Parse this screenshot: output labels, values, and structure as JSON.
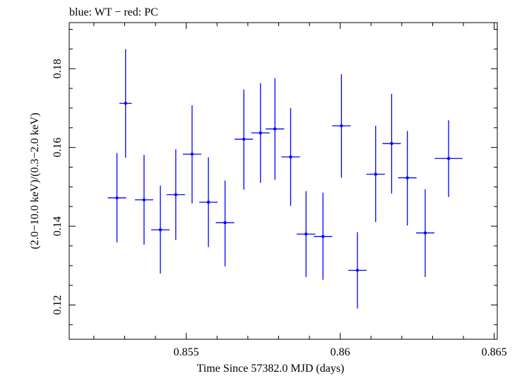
{
  "chart_data": {
    "type": "scatter",
    "title": "blue: WT − red: PC",
    "xlabel": "Time Since 57382.0 MJD (days)",
    "ylabel": "(2.0−10.0 keV)/(0.3−2.0 keV)",
    "xlim": [
      0.8512,
      0.8651
    ],
    "ylim": [
      0.1113,
      0.1917
    ],
    "xticks": [
      0.855,
      0.86,
      0.865
    ],
    "xtick_labels": [
      "0.855",
      "0.86",
      "0.865"
    ],
    "yticks": [
      0.12,
      0.14,
      0.16,
      0.18
    ],
    "ytick_labels": [
      "0.12",
      "0.14",
      "0.16",
      "0.18"
    ],
    "series": [
      {
        "name": "WT",
        "color": "#0000ff",
        "points": [
          {
            "x": 0.85275,
            "xerr": 0.0003,
            "y": 0.1472,
            "ylo": 0.1359,
            "yhi": 0.1586
          },
          {
            "x": 0.85303,
            "xerr": 0.0002,
            "y": 0.1712,
            "ylo": 0.1574,
            "yhi": 0.185
          },
          {
            "x": 0.85363,
            "xerr": 0.0003,
            "y": 0.1467,
            "ylo": 0.1353,
            "yhi": 0.1581
          },
          {
            "x": 0.85416,
            "xerr": 0.0003,
            "y": 0.1391,
            "ylo": 0.128,
            "yhi": 0.1503
          },
          {
            "x": 0.85466,
            "xerr": 0.0003,
            "y": 0.148,
            "ylo": 0.1365,
            "yhi": 0.1595
          },
          {
            "x": 0.85519,
            "xerr": 0.0003,
            "y": 0.1583,
            "ylo": 0.1458,
            "yhi": 0.1707
          },
          {
            "x": 0.85572,
            "xerr": 0.0003,
            "y": 0.1461,
            "ylo": 0.1347,
            "yhi": 0.1575
          },
          {
            "x": 0.85626,
            "xerr": 0.0003,
            "y": 0.1409,
            "ylo": 0.1298,
            "yhi": 0.1516
          },
          {
            "x": 0.85687,
            "xerr": 0.0003,
            "y": 0.1621,
            "ylo": 0.1493,
            "yhi": 0.1747
          },
          {
            "x": 0.85741,
            "xerr": 0.0003,
            "y": 0.1637,
            "ylo": 0.151,
            "yhi": 0.1763
          },
          {
            "x": 0.85788,
            "xerr": 0.0003,
            "y": 0.1647,
            "ylo": 0.1518,
            "yhi": 0.1776
          },
          {
            "x": 0.85839,
            "xerr": 0.0003,
            "y": 0.1576,
            "ylo": 0.1452,
            "yhi": 0.17
          },
          {
            "x": 0.85889,
            "xerr": 0.0003,
            "y": 0.138,
            "ylo": 0.1271,
            "yhi": 0.1489
          },
          {
            "x": 0.85944,
            "xerr": 0.0003,
            "y": 0.1374,
            "ylo": 0.1264,
            "yhi": 0.1485
          },
          {
            "x": 0.86004,
            "xerr": 0.0003,
            "y": 0.1655,
            "ylo": 0.1523,
            "yhi": 0.1786
          },
          {
            "x": 0.86056,
            "xerr": 0.0003,
            "y": 0.1288,
            "ylo": 0.1191,
            "yhi": 0.1385
          },
          {
            "x": 0.86115,
            "xerr": 0.0003,
            "y": 0.1532,
            "ylo": 0.1411,
            "yhi": 0.1655
          },
          {
            "x": 0.86167,
            "xerr": 0.0003,
            "y": 0.161,
            "ylo": 0.1483,
            "yhi": 0.1736
          },
          {
            "x": 0.86218,
            "xerr": 0.0003,
            "y": 0.1523,
            "ylo": 0.1402,
            "yhi": 0.1642
          },
          {
            "x": 0.86276,
            "xerr": 0.0003,
            "y": 0.1383,
            "ylo": 0.1271,
            "yhi": 0.1494
          },
          {
            "x": 0.86352,
            "xerr": 0.00045,
            "y": 0.1572,
            "ylo": 0.1474,
            "yhi": 0.1669
          }
        ]
      }
    ]
  }
}
